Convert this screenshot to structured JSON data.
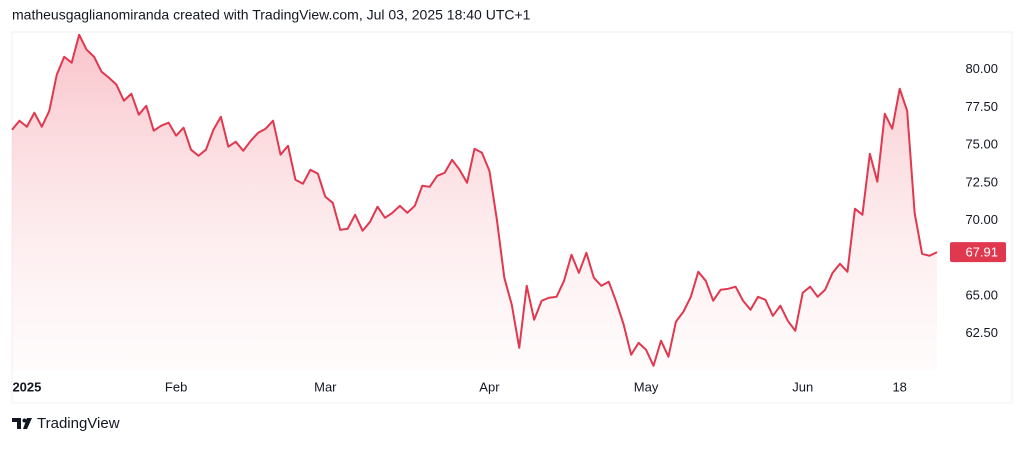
{
  "chart_data": {
    "type": "area",
    "title": "matheusgaglianomiranda created with TradingView.com, Jul 03, 2025 18:40 UTC+1",
    "footer": "TradingView",
    "color": "#e0384f",
    "values": [
      76.02,
      76.62,
      76.22,
      77.15,
      76.22,
      77.28,
      79.67,
      80.86,
      80.46,
      82.32,
      81.33,
      80.86,
      79.87,
      79.47,
      79.01,
      77.95,
      78.41,
      77.02,
      77.61,
      75.96,
      76.29,
      76.49,
      75.63,
      76.16,
      74.7,
      74.3,
      74.7,
      76.02,
      76.88,
      74.9,
      75.23,
      74.63,
      75.29,
      75.82,
      76.09,
      76.62,
      74.37,
      74.96,
      72.71,
      72.44,
      73.37,
      73.11,
      71.58,
      71.18,
      69.39,
      69.46,
      70.39,
      69.33,
      69.92,
      70.92,
      70.19,
      70.52,
      70.98,
      70.52,
      70.98,
      72.31,
      72.24,
      72.97,
      73.17,
      74.03,
      73.37,
      72.51,
      74.76,
      74.5,
      73.3,
      70.06,
      66.21,
      64.42,
      61.57,
      65.68,
      63.43,
      64.69,
      64.89,
      64.95,
      66.01,
      67.74,
      66.54,
      67.87,
      66.21,
      65.68,
      65.95,
      64.62,
      63.1,
      61.11,
      61.9,
      61.44,
      60.38,
      62.04,
      60.98,
      63.3,
      63.96,
      64.95,
      66.61,
      66.01,
      64.69,
      65.42,
      65.48,
      65.62,
      64.69,
      64.09,
      64.95,
      64.75,
      63.69,
      64.36,
      63.36,
      62.7,
      65.22,
      65.62,
      64.95,
      65.42,
      66.54,
      67.14,
      66.61,
      70.79,
      70.39,
      74.43,
      72.58,
      77.08,
      76.09,
      78.74,
      77.28,
      70.52,
      67.8,
      67.67,
      67.91
    ],
    "xlim": [
      0,
      124
    ],
    "xticks": [
      {
        "value": 2,
        "label": "2025"
      },
      {
        "value": 22,
        "label": "Feb"
      },
      {
        "value": 42,
        "label": "Mar"
      },
      {
        "value": 64,
        "label": "Apr"
      },
      {
        "value": 85,
        "label": "May"
      },
      {
        "value": 106,
        "label": "Jun"
      },
      {
        "value": 119,
        "label": "18"
      }
    ],
    "ylim": [
      60.1,
      82.5
    ],
    "yticks": [
      {
        "value": 62.5,
        "label": "62.50"
      },
      {
        "value": 65,
        "label": "65.00"
      },
      {
        "value": 67.5,
        "label": "67.50"
      },
      {
        "value": 70,
        "label": "70.00"
      },
      {
        "value": 72.5,
        "label": "72.50"
      },
      {
        "value": 75,
        "label": "75.00"
      },
      {
        "value": 77.5,
        "label": "77.50"
      },
      {
        "value": 80,
        "label": "80.00"
      }
    ]
  }
}
